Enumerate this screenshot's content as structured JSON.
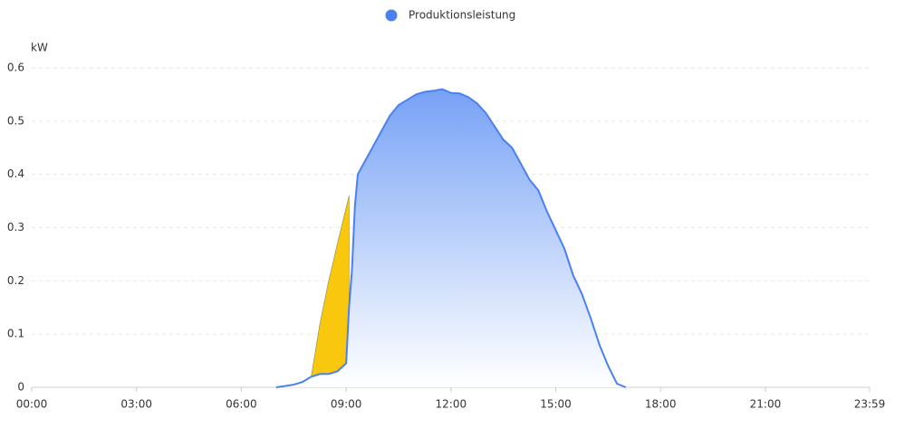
{
  "chart_data": {
    "type": "area",
    "y_unit": "kW",
    "x": [
      420,
      450,
      465,
      480,
      495,
      510,
      525,
      540,
      545,
      550,
      555,
      560,
      570,
      585,
      600,
      615,
      630,
      645,
      660,
      675,
      690,
      705,
      720,
      735,
      750,
      765,
      780,
      795,
      810,
      825,
      840,
      855,
      870,
      885,
      900,
      915,
      930,
      945,
      960,
      975,
      990,
      1005,
      1020
    ],
    "series": [
      {
        "name": "Produktionsleistung",
        "color": "#4a80f0",
        "values": [
          0,
          0.005,
          0.01,
          0.02,
          0.025,
          0.025,
          0.03,
          0.045,
          0.15,
          0.22,
          0.34,
          0.4,
          0.42,
          0.45,
          0.48,
          0.51,
          0.53,
          0.54,
          0.55,
          0.555,
          0.557,
          0.56,
          0.553,
          0.552,
          0.545,
          0.533,
          0.515,
          0.49,
          0.465,
          0.45,
          0.42,
          0.39,
          0.37,
          0.33,
          0.295,
          0.26,
          0.21,
          0.175,
          0.13,
          0.08,
          0.04,
          0.007,
          0
        ]
      }
    ],
    "highlight": {
      "color": "#f9c80e",
      "x": [
        480,
        495,
        510,
        525,
        545
      ],
      "values": [
        0.02,
        0.12,
        0.2,
        0.27,
        0.36
      ]
    },
    "xlim": [
      0,
      1439
    ],
    "xticks": [
      {
        "value": 0,
        "label": "00:00"
      },
      {
        "value": 180,
        "label": "03:00"
      },
      {
        "value": 360,
        "label": "06:00"
      },
      {
        "value": 540,
        "label": "09:00"
      },
      {
        "value": 720,
        "label": "12:00"
      },
      {
        "value": 900,
        "label": "15:00"
      },
      {
        "value": 1080,
        "label": "18:00"
      },
      {
        "value": 1260,
        "label": "21:00"
      },
      {
        "value": 1439,
        "label": "23:59"
      }
    ],
    "ylim": [
      0,
      0.6
    ],
    "yticks": [
      0,
      0.1,
      0.2,
      0.3,
      0.4,
      0.5,
      0.6
    ],
    "grid": true
  }
}
